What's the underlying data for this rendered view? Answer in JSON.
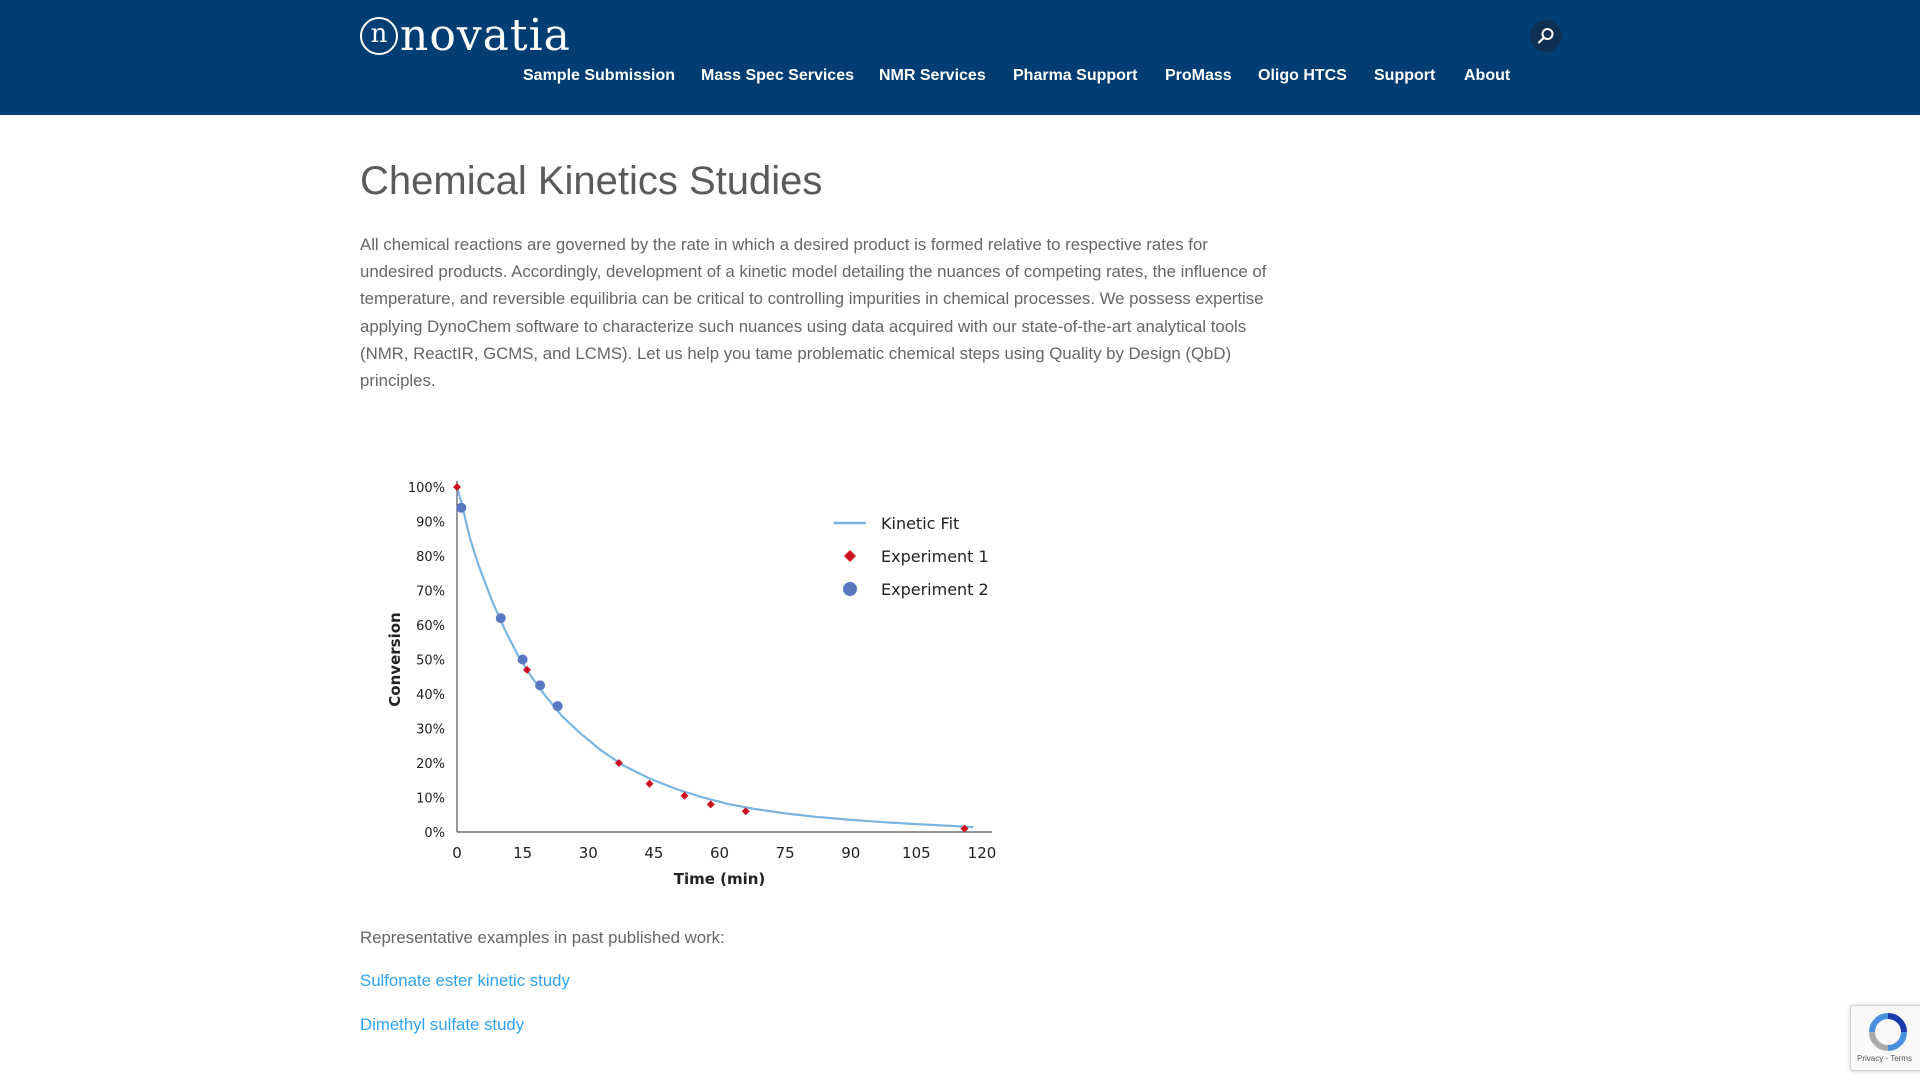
{
  "header": {
    "logo_mark": "n",
    "logo_text": "novatia",
    "search_icon": "search-icon",
    "nav": [
      {
        "label": "Sample Submission"
      },
      {
        "label": "Mass Spec Services"
      },
      {
        "label": "NMR Services"
      },
      {
        "label": "Pharma Support"
      },
      {
        "label": "ProMass"
      },
      {
        "label": "Oligo HTCS"
      },
      {
        "label": "Support"
      },
      {
        "label": "About"
      }
    ]
  },
  "main": {
    "title": "Chemical Kinetics Studies",
    "intro": "All chemical reactions are governed by the rate in which a desired product is formed relative to respective rates for undesired products. Accordingly, development of a kinetic model detailing the nuances of competing rates, the influence of temperature, and reversible equilibria can be critical to controlling impurities in chemical processes. We possess expertise applying DynoChem software to characterize such nuances using data acquired with our state-of-the-art analytical tools (NMR, ReactIR, GCMS, and LCMS). Let us help you tame problematic chemical steps using Quality by Design (QbD) principles.",
    "representative": "Representative examples in past published work:",
    "links": [
      {
        "label": "Sulfonate ester kinetic study"
      },
      {
        "label": "Dimethyl sulfate study"
      }
    ]
  },
  "recaptcha": {
    "links": "Privacy - Terms"
  },
  "colors": {
    "header_bg": "#003d73",
    "link": "#2ea3f2",
    "fit_line": "#7ab4e0",
    "experiment1": "#cc1122",
    "experiment2": "#5a78c0"
  },
  "chart_data": {
    "type": "scatter",
    "xlabel": "Time (min)",
    "ylabel": "Conversion",
    "xlim": [
      0,
      120
    ],
    "ylim": [
      0,
      100
    ],
    "x_ticks": [
      "0",
      "15",
      "30",
      "45",
      "60",
      "75",
      "90",
      "105",
      "120"
    ],
    "y_ticks": [
      "0%",
      "10%",
      "20%",
      "30%",
      "40%",
      "50%",
      "60%",
      "70%",
      "80%",
      "90%",
      "100%"
    ],
    "legend_position": "top-right",
    "series": [
      {
        "name": "Kinetic Fit",
        "kind": "line",
        "x": [
          0,
          1,
          3,
          5,
          8,
          11,
          14,
          17,
          20,
          24,
          28,
          33,
          38,
          44,
          50,
          56,
          62,
          68,
          75,
          82,
          90,
          98,
          106,
          114,
          118
        ],
        "y": [
          100,
          95.5,
          85,
          77,
          67,
          58.5,
          51,
          45,
          39.8,
          33.6,
          28.8,
          23.6,
          19.3,
          15.5,
          12.5,
          10.1,
          8.1,
          6.7,
          5.4,
          4.4,
          3.5,
          2.8,
          2.2,
          1.7,
          1.4
        ]
      },
      {
        "name": "Experiment 1",
        "kind": "diamond",
        "x": [
          0,
          16,
          37,
          44,
          52,
          58,
          66,
          116
        ],
        "y": [
          100,
          47,
          20,
          14,
          10.5,
          8,
          6,
          1
        ]
      },
      {
        "name": "Experiment 2",
        "kind": "circle",
        "x": [
          1,
          10,
          15,
          19,
          23
        ],
        "y": [
          94,
          62,
          50,
          42.5,
          36.5
        ]
      }
    ]
  }
}
